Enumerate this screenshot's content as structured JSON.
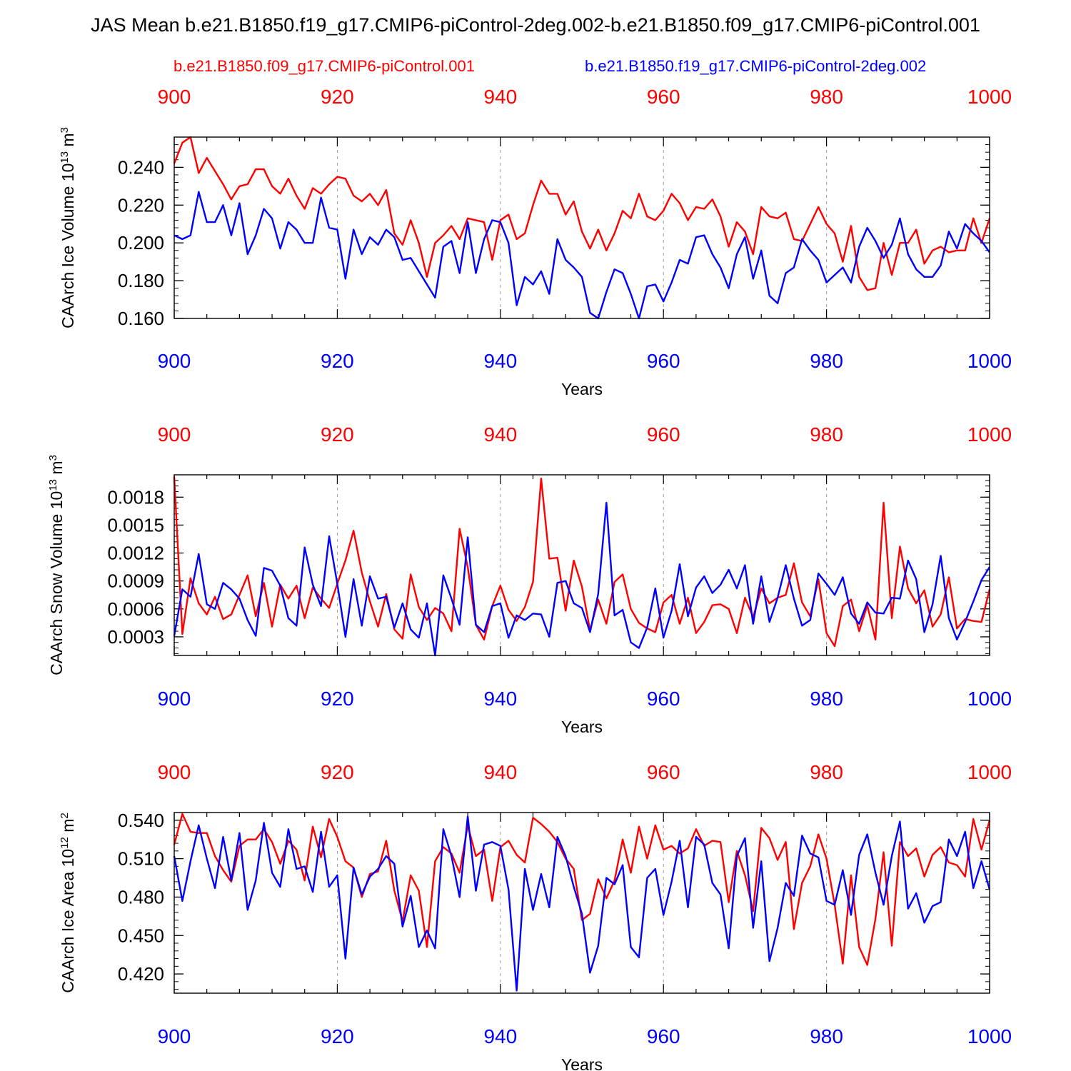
{
  "title": "JAS Mean b.e21.B1850.f19_g17.CMIP6-piControl-2deg.002-b.e21.B1850.f09_g17.CMIP6-piControl.001",
  "legend": {
    "red_label": "b.e21.B1850.f09_g17.CMIP6-piControl.001",
    "blue_label": "b.e21.B1850.f19_g17.CMIP6-piControl-2deg.002"
  },
  "colors": {
    "red": "#ff0000",
    "blue": "#0000ff",
    "axis": "#000000",
    "grid": "#999999"
  },
  "chart_data": [
    {
      "type": "line",
      "ylabel": "CAArch Ice Volume 10^13 m^3",
      "xlabel": "Years",
      "xlim": [
        900,
        1000
      ],
      "ylim": [
        0.16,
        0.256
      ],
      "xticks": [
        900,
        920,
        940,
        960,
        980,
        1000
      ],
      "yticks": [
        "0.160",
        "0.180",
        "0.200",
        "0.220",
        "0.240"
      ],
      "series": [
        {
          "name": "b.e21.B1850.f09_g17.CMIP6-piControl.001",
          "color": "red",
          "values": [
            0.242,
            0.253,
            0.256,
            0.237,
            0.245,
            0.238,
            0.231,
            0.223,
            0.23,
            0.231,
            0.239,
            0.239,
            0.23,
            0.226,
            0.234,
            0.225,
            0.218,
            0.229,
            0.226,
            0.231,
            0.235,
            0.234,
            0.225,
            0.222,
            0.226,
            0.22,
            0.228,
            0.205,
            0.199,
            0.212,
            0.2,
            0.182,
            0.2,
            0.204,
            0.209,
            0.202,
            0.213,
            0.212,
            0.211,
            0.191,
            0.212,
            0.215,
            0.202,
            0.205,
            0.22,
            0.233,
            0.226,
            0.226,
            0.215,
            0.222,
            0.206,
            0.197,
            0.207,
            0.196,
            0.205,
            0.217,
            0.213,
            0.226,
            0.214,
            0.212,
            0.217,
            0.226,
            0.221,
            0.212,
            0.219,
            0.218,
            0.223,
            0.214,
            0.198,
            0.211,
            0.206,
            0.194,
            0.219,
            0.214,
            0.213,
            0.216,
            0.202,
            0.201,
            0.21,
            0.219,
            0.21,
            0.205,
            0.19,
            0.209,
            0.182,
            0.175,
            0.176,
            0.2,
            0.183,
            0.2,
            0.2,
            0.207,
            0.189,
            0.196,
            0.198,
            0.195,
            0.196,
            0.196,
            0.213,
            0.2,
            0.213
          ]
        },
        {
          "name": "b.e21.B1850.f19_g17.CMIP6-piControl-2deg.002",
          "color": "blue",
          "values": [
            0.204,
            0.202,
            0.204,
            0.227,
            0.211,
            0.211,
            0.22,
            0.204,
            0.221,
            0.194,
            0.204,
            0.218,
            0.213,
            0.197,
            0.211,
            0.207,
            0.2,
            0.2,
            0.224,
            0.208,
            0.207,
            0.181,
            0.207,
            0.194,
            0.203,
            0.199,
            0.207,
            0.203,
            0.191,
            0.192,
            0.185,
            0.178,
            0.171,
            0.198,
            0.201,
            0.184,
            0.211,
            0.184,
            0.202,
            0.212,
            0.211,
            0.2,
            0.167,
            0.182,
            0.178,
            0.185,
            0.173,
            0.202,
            0.191,
            0.187,
            0.182,
            0.163,
            0.16,
            0.174,
            0.186,
            0.184,
            0.173,
            0.16,
            0.177,
            0.178,
            0.169,
            0.179,
            0.191,
            0.189,
            0.203,
            0.204,
            0.194,
            0.187,
            0.176,
            0.194,
            0.203,
            0.181,
            0.196,
            0.172,
            0.168,
            0.184,
            0.187,
            0.202,
            0.196,
            0.191,
            0.179,
            0.183,
            0.187,
            0.179,
            0.198,
            0.208,
            0.201,
            0.192,
            0.199,
            0.213,
            0.194,
            0.186,
            0.182,
            0.182,
            0.188,
            0.206,
            0.197,
            0.21,
            0.205,
            0.201,
            0.195
          ]
        }
      ]
    },
    {
      "type": "line",
      "ylabel": "CAArch Snow Volume 10^13 m^3",
      "xlabel": "Years",
      "xlim": [
        900,
        1000
      ],
      "ylim": [
        0.0001,
        0.00204
      ],
      "xticks": [
        900,
        920,
        940,
        960,
        980,
        1000
      ],
      "yticks": [
        "0.0003",
        "0.0006",
        "0.0009",
        "0.0012",
        "0.0015",
        "0.0018"
      ],
      "series": [
        {
          "name": "b.e21.B1850.f09_g17.CMIP6-piControl.001",
          "color": "red",
          "values": [
            0.00202,
            0.00033,
            0.00093,
            0.00066,
            0.00054,
            0.00073,
            0.00049,
            0.00054,
            0.00075,
            0.00096,
            0.00052,
            0.00088,
            0.00041,
            0.00086,
            0.00071,
            0.00085,
            0.0005,
            0.00083,
            0.00071,
            0.00061,
            0.00087,
            0.00112,
            0.00144,
            0.00099,
            0.00068,
            0.00041,
            0.00076,
            0.00038,
            0.00028,
            0.00097,
            0.00062,
            0.00048,
            0.00061,
            0.00055,
            0.00036,
            0.00146,
            0.00105,
            0.00043,
            0.00027,
            0.00063,
            0.00085,
            0.00059,
            0.00047,
            0.00062,
            0.00089,
            0.002,
            0.00114,
            0.00115,
            0.00058,
            0.00112,
            0.00084,
            0.00037,
            0.0007,
            0.00044,
            0.00089,
            0.00097,
            0.0006,
            0.00045,
            0.00039,
            0.00035,
            0.00067,
            0.00075,
            0.00044,
            0.00072,
            0.00034,
            0.00046,
            0.00064,
            0.00065,
            0.0006,
            0.00034,
            0.00072,
            0.00051,
            0.00082,
            0.00066,
            0.00072,
            0.00075,
            0.00109,
            0.00067,
            0.00052,
            0.00092,
            0.00034,
            0.0002,
            0.00063,
            0.0007,
            0.00036,
            0.00064,
            0.00027,
            0.00174,
            0.0005,
            0.00127,
            0.00082,
            0.00066,
            0.0008,
            0.00041,
            0.00054,
            0.00094,
            0.00039,
            0.00049,
            0.00047,
            0.00046,
            0.00081
          ]
        },
        {
          "name": "b.e21.B1850.f19_g17.CMIP6-piControl-2deg.002",
          "color": "blue",
          "values": [
            0.00031,
            0.00081,
            0.00073,
            0.00119,
            0.00065,
            0.0006,
            0.00088,
            0.00081,
            0.00071,
            0.00048,
            0.00031,
            0.00104,
            0.00101,
            0.00085,
            0.0005,
            0.00042,
            0.00126,
            0.00086,
            0.00063,
            0.00138,
            0.00087,
            0.0003,
            0.00092,
            0.00042,
            0.00095,
            0.00071,
            0.00073,
            0.0004,
            0.00066,
            0.00038,
            0.00029,
            0.00066,
            0.0001,
            0.00096,
            0.00071,
            0.00043,
            0.00137,
            0.00043,
            0.00035,
            0.00063,
            0.00066,
            0.00029,
            0.00053,
            0.00048,
            0.00055,
            0.00054,
            0.0003,
            0.00088,
            0.0009,
            0.00066,
            0.00061,
            0.00035,
            0.00076,
            0.00174,
            0.00053,
            0.00059,
            0.00024,
            0.00018,
            0.0004,
            0.00082,
            0.00029,
            0.00058,
            0.00108,
            0.00052,
            0.00083,
            0.00095,
            0.00077,
            0.00086,
            0.00102,
            0.00082,
            0.00107,
            0.00044,
            0.00095,
            0.00046,
            0.00072,
            0.00107,
            0.00071,
            0.00042,
            0.00048,
            0.00098,
            0.00087,
            0.00075,
            0.00094,
            0.00055,
            0.00044,
            0.00067,
            0.00056,
            0.00055,
            0.00072,
            0.00071,
            0.00112,
            0.00092,
            0.00035,
            0.00065,
            0.00117,
            0.0005,
            0.00027,
            0.00046,
            0.00068,
            0.00091,
            0.00105
          ]
        }
      ]
    },
    {
      "type": "line",
      "ylabel": "CAArch Ice Area 10^12 m^2",
      "xlabel": "Years",
      "xlim": [
        900,
        1000
      ],
      "ylim": [
        0.405,
        0.546
      ],
      "xticks": [
        900,
        920,
        940,
        960,
        980,
        1000
      ],
      "yticks": [
        "0.420",
        "0.450",
        "0.480",
        "0.510",
        "0.540"
      ],
      "series": [
        {
          "name": "b.e21.B1850.f09_g17.CMIP6-piControl.001",
          "color": "red",
          "values": [
            0.521,
            0.545,
            0.531,
            0.53,
            0.53,
            0.512,
            0.501,
            0.492,
            0.52,
            0.525,
            0.525,
            0.533,
            0.523,
            0.506,
            0.524,
            0.517,
            0.493,
            0.535,
            0.511,
            0.541,
            0.527,
            0.508,
            0.503,
            0.48,
            0.498,
            0.5,
            0.524,
            0.485,
            0.461,
            0.497,
            0.485,
            0.441,
            0.508,
            0.519,
            0.514,
            0.499,
            0.536,
            0.512,
            0.517,
            0.477,
            0.519,
            0.524,
            0.513,
            0.507,
            0.542,
            0.537,
            0.531,
            0.523,
            0.51,
            0.502,
            0.462,
            0.467,
            0.494,
            0.479,
            0.493,
            0.525,
            0.499,
            0.535,
            0.51,
            0.536,
            0.517,
            0.52,
            0.514,
            0.518,
            0.533,
            0.52,
            0.524,
            0.523,
            0.476,
            0.516,
            0.497,
            0.469,
            0.534,
            0.526,
            0.509,
            0.523,
            0.455,
            0.491,
            0.504,
            0.529,
            0.51,
            0.474,
            0.428,
            0.497,
            0.441,
            0.427,
            0.463,
            0.515,
            0.442,
            0.523,
            0.512,
            0.518,
            0.496,
            0.513,
            0.519,
            0.507,
            0.505,
            0.496,
            0.541,
            0.517,
            0.54
          ]
        },
        {
          "name": "b.e21.B1850.f19_g17.CMIP6-piControl-2deg.002",
          "color": "blue",
          "values": [
            0.512,
            0.477,
            0.508,
            0.536,
            0.51,
            0.487,
            0.527,
            0.493,
            0.53,
            0.47,
            0.493,
            0.538,
            0.499,
            0.488,
            0.533,
            0.502,
            0.504,
            0.484,
            0.531,
            0.488,
            0.497,
            0.432,
            0.503,
            0.482,
            0.496,
            0.502,
            0.512,
            0.506,
            0.457,
            0.481,
            0.441,
            0.454,
            0.44,
            0.533,
            0.512,
            0.48,
            0.543,
            0.485,
            0.521,
            0.523,
            0.52,
            0.486,
            0.407,
            0.502,
            0.47,
            0.498,
            0.472,
            0.527,
            0.512,
            0.488,
            0.467,
            0.421,
            0.442,
            0.495,
            0.49,
            0.505,
            0.441,
            0.433,
            0.495,
            0.502,
            0.466,
            0.492,
            0.524,
            0.472,
            0.527,
            0.521,
            0.491,
            0.482,
            0.44,
            0.512,
            0.526,
            0.456,
            0.508,
            0.43,
            0.456,
            0.491,
            0.481,
            0.528,
            0.514,
            0.511,
            0.477,
            0.474,
            0.501,
            0.466,
            0.513,
            0.529,
            0.499,
            0.474,
            0.512,
            0.539,
            0.471,
            0.483,
            0.46,
            0.473,
            0.476,
            0.525,
            0.512,
            0.531,
            0.487,
            0.508,
            0.486
          ]
        }
      ]
    }
  ]
}
